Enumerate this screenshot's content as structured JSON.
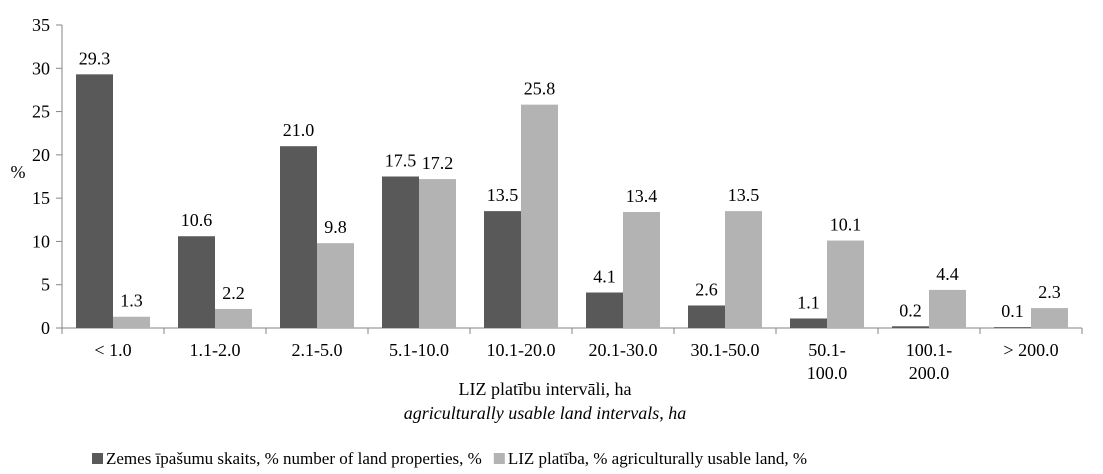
{
  "chart_data": {
    "type": "bar",
    "categories": [
      [
        "< 1.0"
      ],
      [
        "1.1-2.0"
      ],
      [
        "2.1-5.0"
      ],
      [
        "5.1-10.0"
      ],
      [
        "10.1-20.0"
      ],
      [
        "20.1-30.0"
      ],
      [
        "30.1-50.0"
      ],
      [
        "50.1-",
        "100.0"
      ],
      [
        "100.1-",
        "200.0"
      ],
      [
        "> 200.0"
      ]
    ],
    "series": [
      {
        "name": "Zemes īpašumu skaits, % number of land properties, %",
        "color": "#595959",
        "values": [
          29.3,
          10.6,
          21.0,
          17.5,
          13.5,
          4.1,
          2.6,
          1.1,
          0.2,
          0.1
        ],
        "labels": [
          "29.3",
          "10.6",
          "21.0",
          "17.5",
          "13.5",
          "4.1",
          "2.6",
          "1.1",
          "0.2",
          "0.1"
        ]
      },
      {
        "name": "LIZ platība, % agriculturally usable land, %",
        "color": "#b3b3b3",
        "values": [
          1.3,
          2.2,
          9.8,
          17.2,
          25.8,
          13.4,
          13.5,
          10.1,
          4.4,
          2.3
        ],
        "labels": [
          "1.3",
          "2.2",
          "9.8",
          "17.2",
          "25.8",
          "13.4",
          "13.5",
          "10.1",
          "4.4",
          "2.3"
        ]
      }
    ],
    "title": "",
    "ylabel": "%",
    "xlabel": "LIZ platību intervāli, ha",
    "xlabel_en": "agriculturally usable land intervals, ha",
    "ylim": [
      0,
      35
    ],
    "yticks": [
      0,
      5,
      10,
      15,
      20,
      25,
      30,
      35
    ],
    "grid": false,
    "legend_position": "bottom"
  }
}
